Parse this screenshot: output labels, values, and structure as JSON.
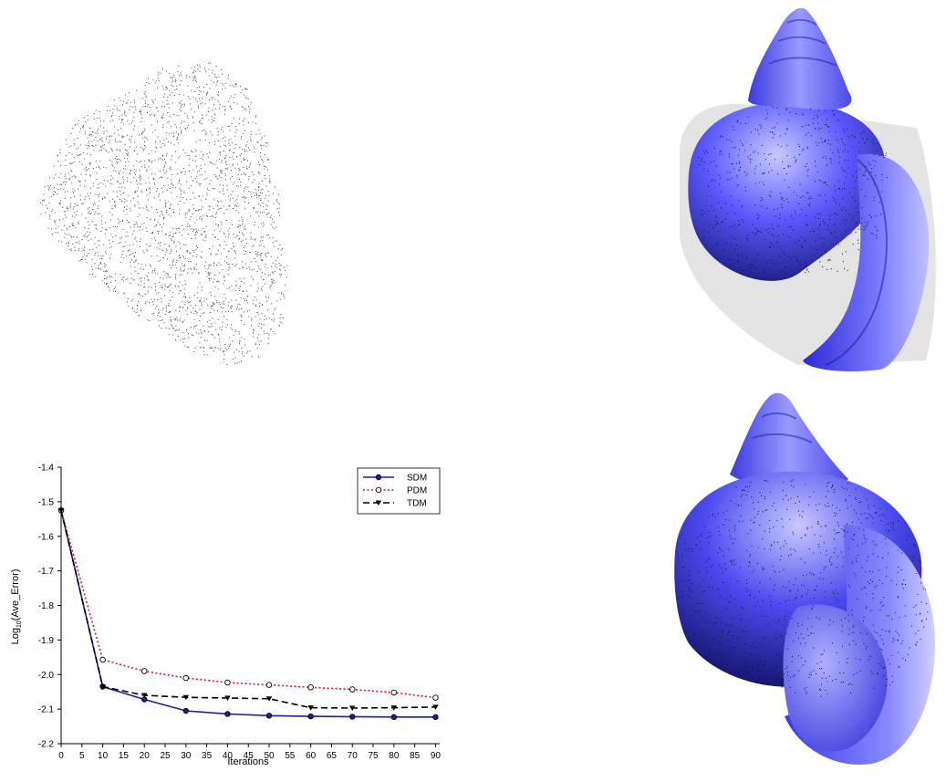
{
  "chart_data": {
    "type": "line",
    "xlabel": "Iterations",
    "ylabel_main": "Log",
    "ylabel_sub": "10",
    "ylabel_rest": "(Ave_Error)",
    "xlim": [
      0,
      91
    ],
    "ylim": [
      -2.2,
      -1.4
    ],
    "xticks": [
      0,
      5,
      10,
      15,
      20,
      25,
      30,
      35,
      40,
      45,
      50,
      55,
      60,
      65,
      70,
      75,
      80,
      85,
      90
    ],
    "yticks": [
      -2.2,
      -2.1,
      -2.0,
      -1.9,
      -1.8,
      -1.7,
      -1.6,
      -1.5,
      -1.4
    ],
    "ytick_labels": [
      "-2.2",
      "-2.1",
      "-2.0",
      "-1.9",
      "-1.8",
      "-1.7",
      "-1.6",
      "-1.5",
      "-1.4"
    ],
    "grid": false,
    "legend_position": "top-right",
    "x": [
      0,
      10,
      20,
      30,
      40,
      50,
      60,
      70,
      80,
      90
    ],
    "series": [
      {
        "name": "SDM",
        "color": "#1f1f8f",
        "dash": "solid",
        "marker": "filled-circle",
        "values": [
          -1.525,
          -2.035,
          -2.072,
          -2.105,
          -2.114,
          -2.119,
          -2.121,
          -2.122,
          -2.123,
          -2.123
        ]
      },
      {
        "name": "PDM",
        "color": "#e8141e",
        "dash": "dotted",
        "marker": "open-circle",
        "values": [
          -1.525,
          -1.957,
          -1.99,
          -2.01,
          -2.023,
          -2.03,
          -2.037,
          -2.043,
          -2.052,
          -2.067
        ]
      },
      {
        "name": "TDM",
        "color": "#000000",
        "dash": "dashed",
        "marker": "filled-triangle-down",
        "values": [
          -1.525,
          -2.035,
          -2.06,
          -2.066,
          -2.068,
          -2.07,
          -2.096,
          -2.097,
          -2.096,
          -2.094
        ]
      }
    ]
  },
  "images": {
    "point_cloud_icon": "shell-point-cloud",
    "fit_top_icon": "shell-surface-fit",
    "fit_bottom_icon": "shell-surface-fit",
    "shell_color": "#4b4bff",
    "point_color": "#404040"
  }
}
